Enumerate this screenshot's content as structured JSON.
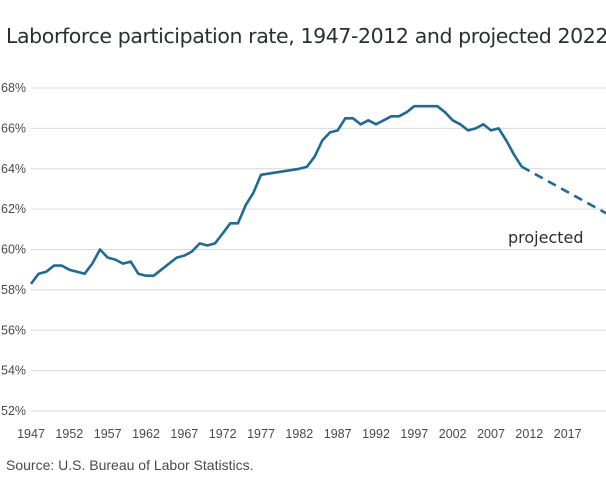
{
  "chart_data": {
    "type": "line",
    "title": "Laborforce participation rate, 1947-2012 and projected 2022",
    "source": "Source: U.S. Bureau of Labor Statistics.",
    "annotation": "projected",
    "xlabel": "",
    "ylabel": "",
    "xlim": [
      1947,
      2022
    ],
    "ylim": [
      52,
      68
    ],
    "x_ticks": [
      1947,
      1952,
      1957,
      1962,
      1967,
      1972,
      1977,
      1982,
      1987,
      1992,
      1997,
      2002,
      2007,
      2012,
      2017
    ],
    "y_ticks": [
      "52%",
      "54%",
      "56%",
      "58%",
      "60%",
      "62%",
      "64%",
      "66%",
      "68%"
    ],
    "grid": "horizontal",
    "legend": "none",
    "colors": {
      "line": "#1f6b93",
      "grid": "#d9d9d9",
      "text": "#4a4a4a"
    },
    "series": [
      {
        "style": "solid",
        "points": [
          [
            1947,
            58.3
          ],
          [
            1948,
            58.8
          ],
          [
            1949,
            58.9
          ],
          [
            1950,
            59.2
          ],
          [
            1951,
            59.2
          ],
          [
            1952,
            59.0
          ],
          [
            1953,
            58.9
          ],
          [
            1954,
            58.8
          ],
          [
            1955,
            59.3
          ],
          [
            1956,
            60.0
          ],
          [
            1957,
            59.6
          ],
          [
            1958,
            59.5
          ],
          [
            1959,
            59.3
          ],
          [
            1960,
            59.4
          ],
          [
            1961,
            58.8
          ],
          [
            1962,
            58.7
          ],
          [
            1963,
            58.7
          ],
          [
            1964,
            59.0
          ],
          [
            1965,
            59.3
          ],
          [
            1966,
            59.6
          ],
          [
            1967,
            59.7
          ],
          [
            1968,
            59.9
          ],
          [
            1969,
            60.3
          ],
          [
            1970,
            60.2
          ],
          [
            1971,
            60.3
          ],
          [
            1972,
            60.8
          ],
          [
            1973,
            61.3
          ],
          [
            1974,
            61.3
          ],
          [
            1975,
            62.2
          ],
          [
            1976,
            62.8
          ],
          [
            1977,
            63.7
          ],
          [
            1982,
            64.0
          ],
          [
            1983,
            64.1
          ],
          [
            1984,
            64.6
          ],
          [
            1985,
            65.4
          ],
          [
            1986,
            65.8
          ],
          [
            1987,
            65.9
          ],
          [
            1988,
            66.5
          ],
          [
            1989,
            66.5
          ],
          [
            1990,
            66.2
          ],
          [
            1991,
            66.4
          ],
          [
            1992,
            66.2
          ],
          [
            1993,
            66.4
          ],
          [
            1994,
            66.6
          ],
          [
            1995,
            66.6
          ],
          [
            1996,
            66.8
          ],
          [
            1997,
            67.1
          ],
          [
            1998,
            67.1
          ],
          [
            1999,
            67.1
          ],
          [
            2000,
            67.1
          ],
          [
            2001,
            66.8
          ],
          [
            2002,
            66.4
          ],
          [
            2003,
            66.2
          ],
          [
            2004,
            65.9
          ],
          [
            2005,
            66.0
          ],
          [
            2006,
            66.2
          ],
          [
            2007,
            65.9
          ],
          [
            2008,
            66.0
          ],
          [
            2009,
            65.4
          ],
          [
            2010,
            64.7
          ],
          [
            2011,
            64.1
          ]
        ]
      },
      {
        "style": "dashed",
        "points": [
          [
            2011,
            64.1
          ],
          [
            2022,
            61.8
          ]
        ]
      }
    ]
  }
}
